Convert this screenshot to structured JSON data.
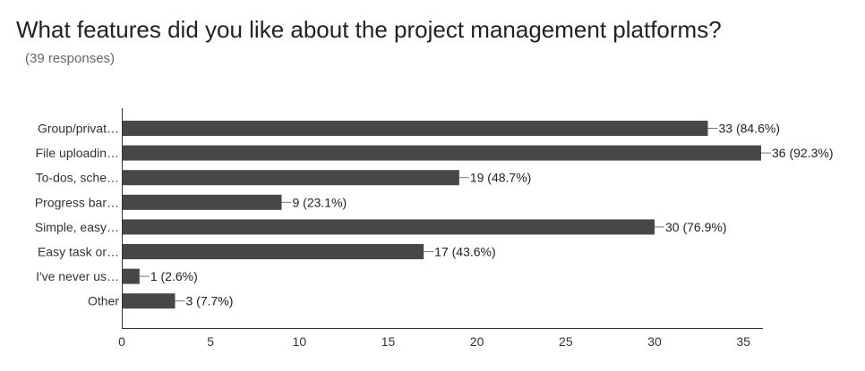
{
  "page": {
    "title": "What features did you like about the project management platforms?",
    "subtitle": "(39 responses)"
  },
  "colors": {
    "bar": "#474747",
    "axis": "#333333",
    "leader": "#777777"
  },
  "chart_data": {
    "type": "bar",
    "orientation": "horizontal",
    "title": "What features did you like about the project management platforms?",
    "subtitle": "(39 responses)",
    "categories": [
      "Group/privat…",
      "File uploadin…",
      "To-dos, sche…",
      "Progress bar…",
      "Simple, easy…",
      "Easy task or…",
      "I've never us…",
      "Other"
    ],
    "values": [
      33,
      36,
      19,
      9,
      30,
      17,
      1,
      3
    ],
    "labels": [
      "33 (84.6%)",
      "36 (92.3%)",
      "19 (48.7%)",
      "9 (23.1%)",
      "30 (76.9%)",
      "17 (43.6%)",
      "1 (2.6%)",
      "3 (7.7%)"
    ],
    "xticks": [
      0,
      5,
      10,
      15,
      20,
      25,
      30,
      35
    ],
    "xlim": [
      0,
      36
    ],
    "xlabel": "",
    "ylabel": "",
    "grid": false,
    "legend": "none"
  }
}
